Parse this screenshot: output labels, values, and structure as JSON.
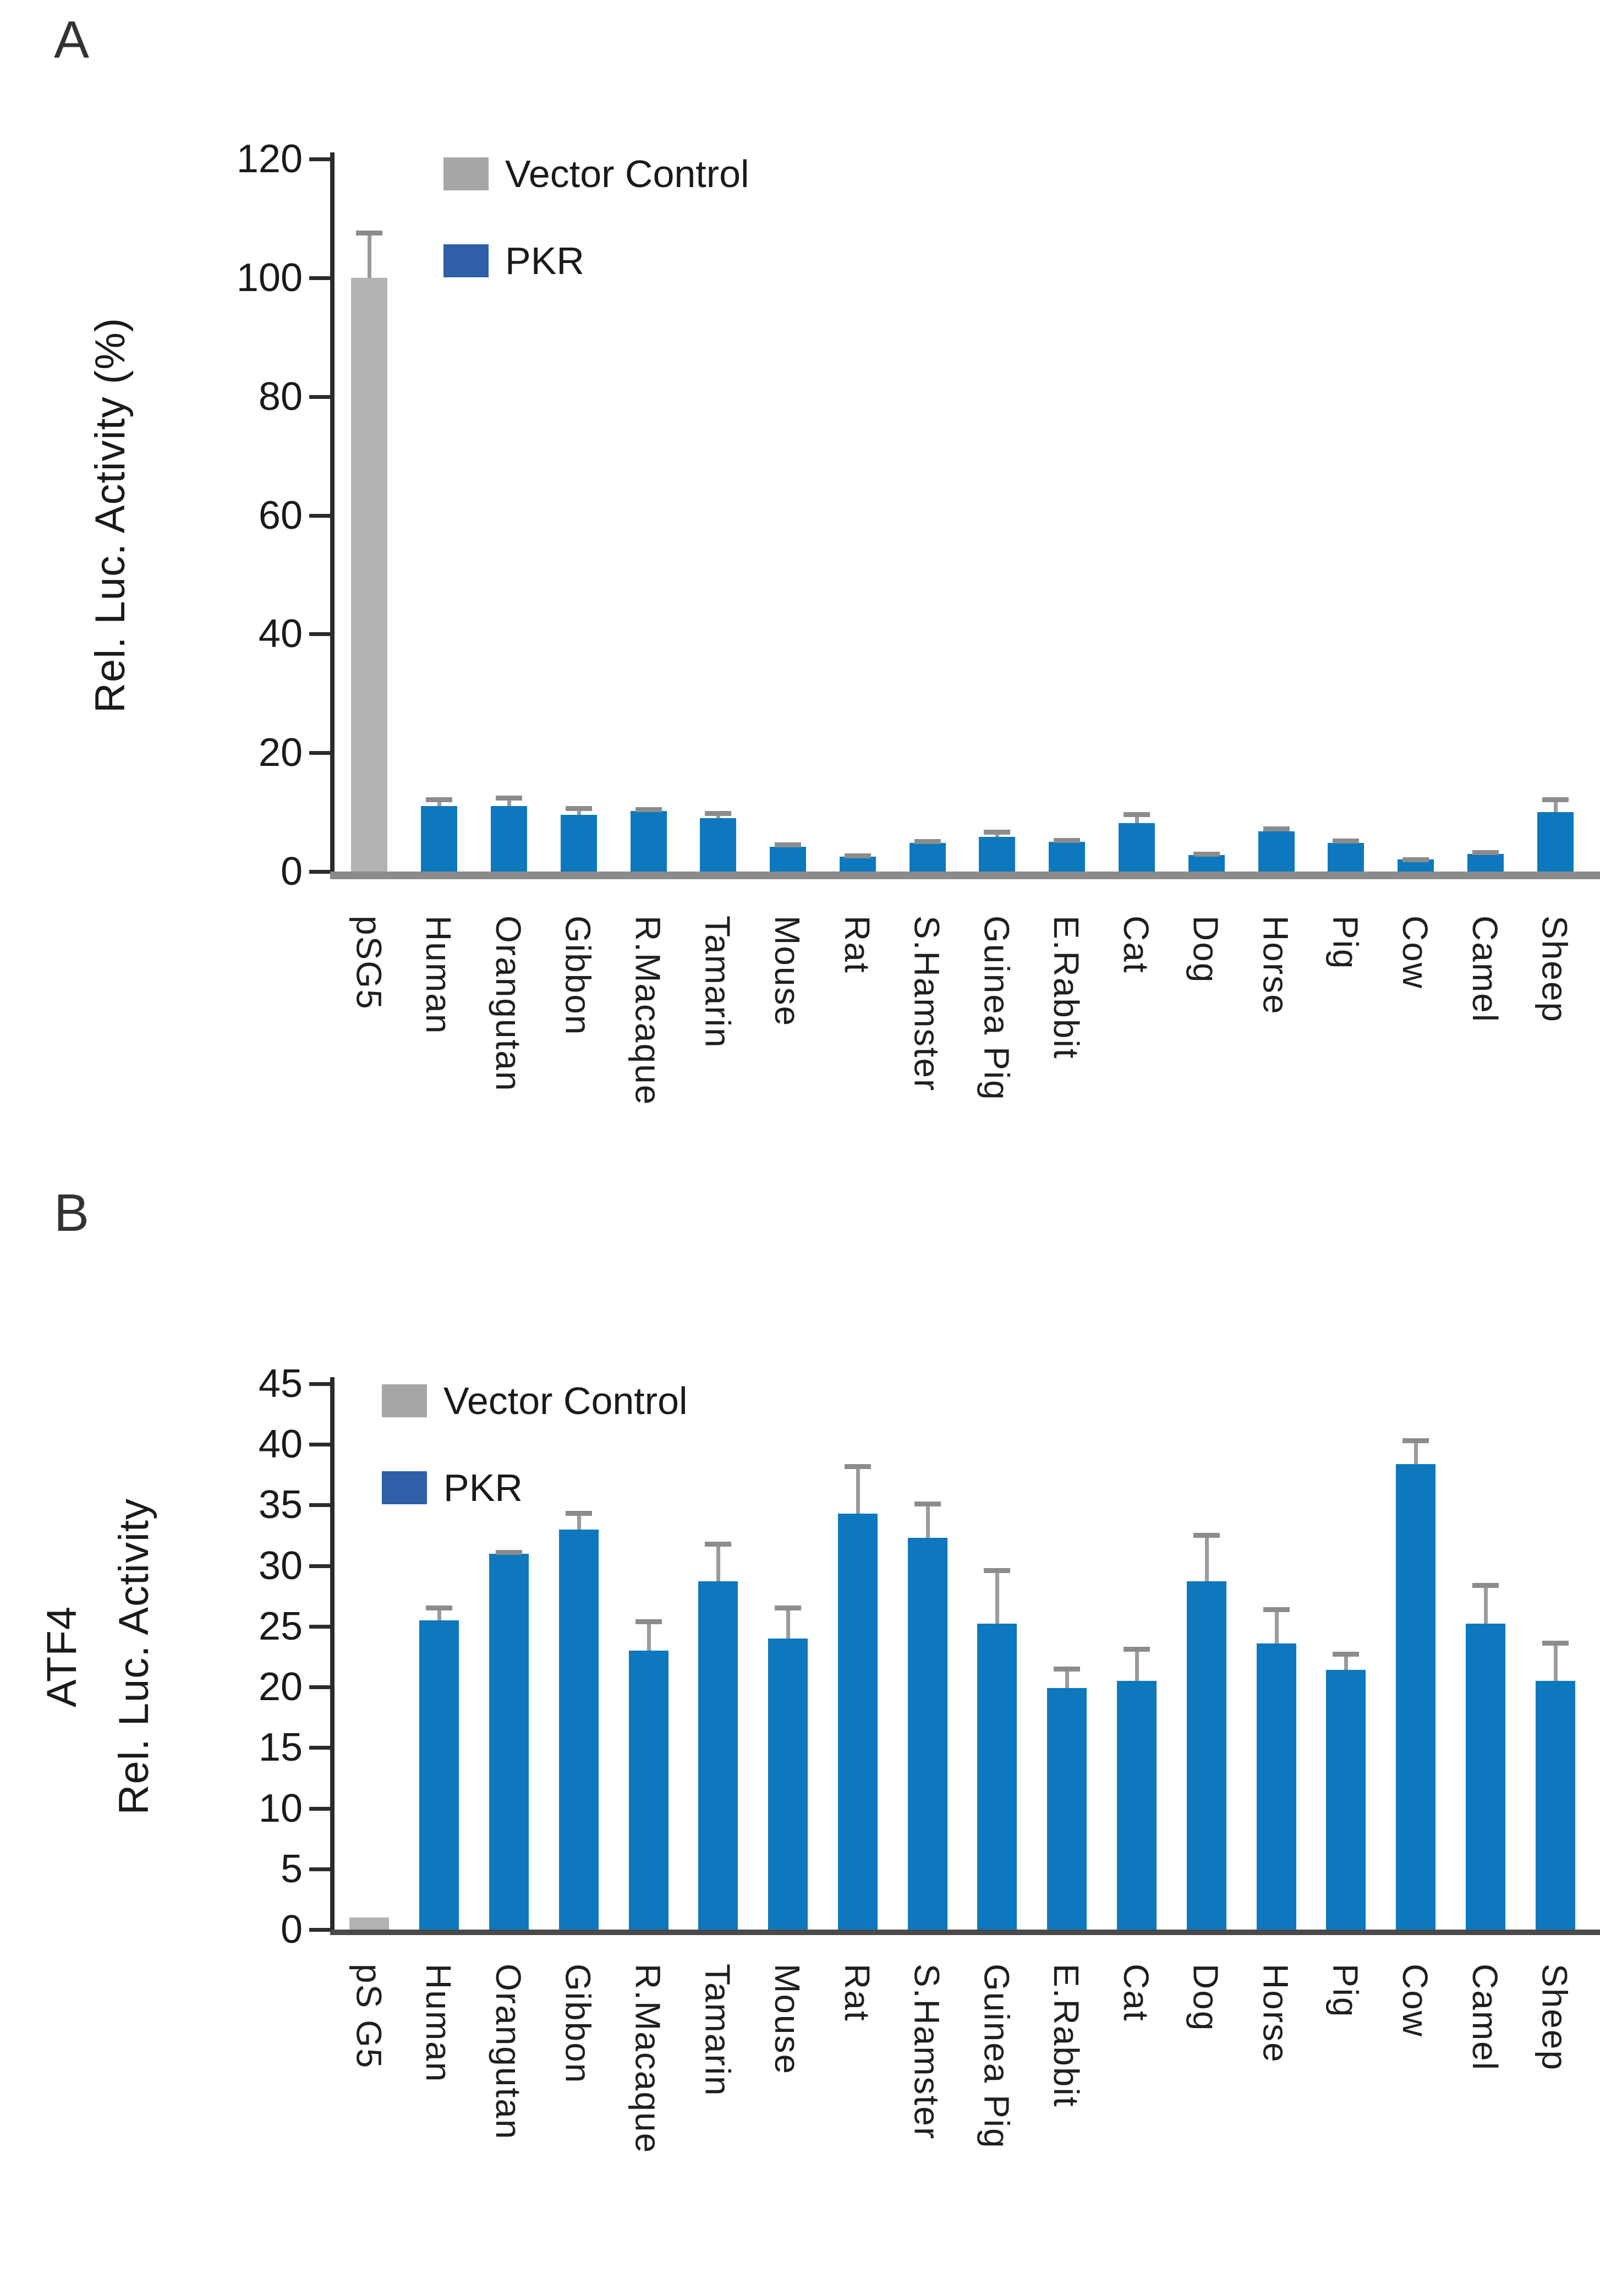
{
  "figure": {
    "panel_a_letter": "A",
    "panel_b_letter": "B"
  },
  "colors": {
    "pkr_bar": "#0d78bd",
    "vector_control_bar": "#b3b3b3",
    "legend_vector_control": "#a6a6a6",
    "legend_pkr": "#2e5fa8"
  },
  "chart_data": [
    {
      "panel": "A",
      "type": "bar",
      "ylabel": "Rel. Luc. Activity (%)",
      "ylabel_lines": [
        "Rel. Luc. Activity (%)"
      ],
      "xlabel": "",
      "ylim": [
        0,
        120
      ],
      "yticks": [
        0,
        20,
        40,
        60,
        80,
        100,
        120
      ],
      "grid": false,
      "legend_position": "top-left-inside",
      "legend": [
        {
          "label": "Vector Control",
          "color": "#a6a6a6"
        },
        {
          "label": "PKR",
          "color": "#2e5fa8"
        }
      ],
      "categories": [
        "pSG5",
        "Human",
        "Orangutan",
        "Gibbon",
        "R.Macaque",
        "Tamarin",
        "Mouse",
        "Rat",
        "S.Hamster",
        "Guinea Pig",
        "E.Rabbit",
        "Cat",
        "Dog",
        "Horse",
        "Pig",
        "Cow",
        "Camel",
        "Sheep"
      ],
      "series": [
        {
          "name": "Vector Control",
          "color": "#b3b3b3",
          "values": [
            100,
            null,
            null,
            null,
            null,
            null,
            null,
            null,
            null,
            null,
            null,
            null,
            null,
            null,
            null,
            null,
            null,
            null
          ]
        },
        {
          "name": "PKR",
          "color": "#0d78bd",
          "values": [
            null,
            11,
            11,
            9.5,
            10.2,
            9,
            4.2,
            2.5,
            4.8,
            5.8,
            5,
            8.2,
            2.8,
            6.8,
            4.8,
            2,
            3,
            10
          ]
        }
      ],
      "errors_plus": [
        8,
        1.5,
        1.8,
        1.5,
        0.6,
        1.2,
        0.7,
        0.6,
        0.7,
        1.2,
        0.7,
        1.8,
        0.5,
        0.8,
        0.8,
        0.4,
        0.6,
        2.5
      ]
    },
    {
      "panel": "B",
      "type": "bar",
      "ylabel": "ATF4 Rel. Luc. Activity",
      "ylabel_lines": [
        "ATF4",
        "Rel. Luc. Activity"
      ],
      "xlabel": "",
      "ylim": [
        0,
        45
      ],
      "yticks": [
        0,
        5,
        10,
        15,
        20,
        25,
        30,
        35,
        40,
        45
      ],
      "grid": false,
      "legend_position": "top-left-inside",
      "legend": [
        {
          "label": "Vector Control",
          "color": "#a6a6a6"
        },
        {
          "label": "PKR",
          "color": "#2e5fa8"
        }
      ],
      "categories": [
        "pS G5",
        "Human",
        "Orangutan",
        "Gibbon",
        "R.Macaque",
        "Tamarin",
        "Mouse",
        "Rat",
        "S.Hamster",
        "Guinea Pig",
        "E.Rabbit",
        "Cat",
        "Dog",
        "Horse",
        "Pig",
        "Cow",
        "Camel",
        "Sheep"
      ],
      "series": [
        {
          "name": "Vector Control",
          "color": "#b3b3b3",
          "values": [
            1,
            null,
            null,
            null,
            null,
            null,
            null,
            null,
            null,
            null,
            null,
            null,
            null,
            null,
            null,
            null,
            null,
            null
          ]
        },
        {
          "name": "PKR",
          "color": "#0d78bd",
          "values": [
            null,
            25.5,
            31,
            33,
            23,
            28.7,
            24,
            34.3,
            32.3,
            25.2,
            19.9,
            20.5,
            28.7,
            23.6,
            21.4,
            38.4,
            25.2,
            20.5
          ]
        }
      ],
      "errors_plus": [
        0,
        1.2,
        0.3,
        1.5,
        2.6,
        3.3,
        2.7,
        4.1,
        3,
        4.6,
        1.8,
        2.8,
        4,
        3,
        1.5,
        2.1,
        3.4,
        3.3
      ]
    }
  ]
}
